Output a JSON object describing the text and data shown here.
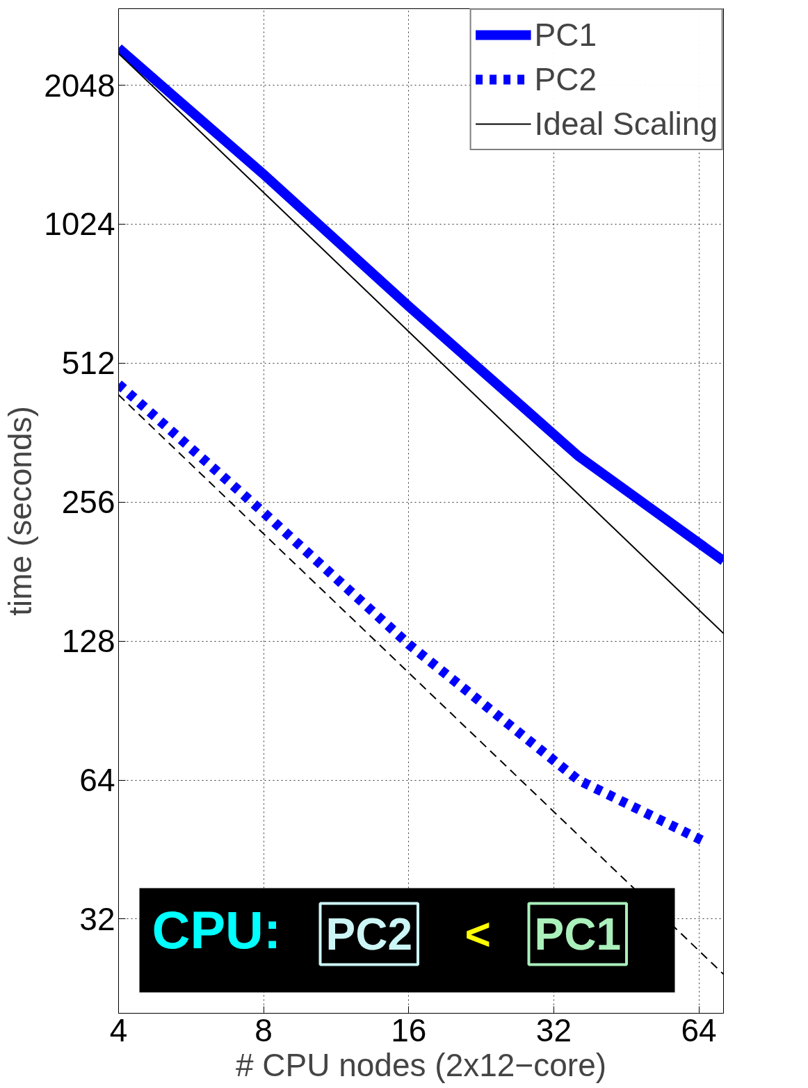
{
  "chart_data": {
    "type": "line",
    "xlabel": "# CPU nodes (2x12−core)",
    "ylabel": "time (seconds)",
    "log": "xy",
    "grid": true,
    "legend": "top right",
    "xlim": [
      4,
      72
    ],
    "ylim": [
      20,
      3000
    ],
    "xticks": [
      4,
      8,
      16,
      32,
      64
    ],
    "yticks": [
      32,
      64,
      128,
      256,
      512,
      1024,
      2048
    ],
    "series": [
      {
        "name": "PC1",
        "color": "#0000ff",
        "line_style": "solid",
        "x": [
          4,
          8,
          16,
          36,
          72
        ],
        "values": [
          2464,
          1313,
          680,
          322,
          191
        ]
      },
      {
        "name": "PC2",
        "color": "#0000ff",
        "line_style": "dotted",
        "x": [
          4,
          8,
          16,
          36,
          66
        ],
        "values": [
          461,
          243,
          126,
          64,
          47
        ]
      },
      {
        "name": "Ideal Scaling",
        "color": "#000000",
        "line_style": "solid",
        "x": [
          4,
          72
        ],
        "values": [
          2400,
          133
        ]
      },
      {
        "color": "#000000",
        "line_style": "dashed",
        "x": [
          4,
          72
        ],
        "values": [
          437,
          24.3
        ]
      }
    ],
    "annotations": [
      "CPU:",
      "PC2",
      "<",
      "PC1"
    ]
  }
}
